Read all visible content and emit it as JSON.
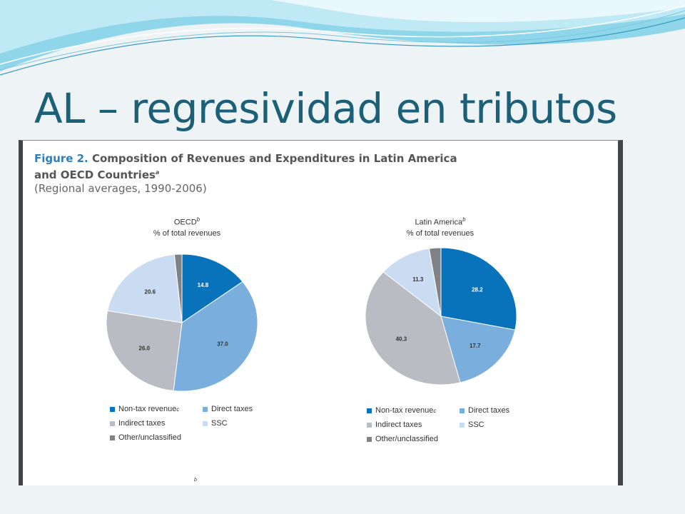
{
  "slide": {
    "title": "AL – regresividad en tributos"
  },
  "figure": {
    "label": "Figure 2.",
    "title_rest": " Composition of Revenues and Expenditures in Latin America",
    "title_line2": "and OECD Countries",
    "title_sup": "a",
    "subtitle": "(Regional averages, 1990-2006)",
    "footnote_mark": "b"
  },
  "colors": {
    "non_tax": "#0873bb",
    "direct": "#7aaedd",
    "indirect": "#b9bcc2",
    "ssc": "#c9dcf1",
    "other": "#808285"
  },
  "chart_data": [
    {
      "type": "pie",
      "title": "OECD",
      "title_sup": "b",
      "subtitle": "% of total revenues",
      "slices": [
        {
          "name": "Non-tax revenue",
          "value": 14.8,
          "label": "14.8",
          "color": "#0873bb"
        },
        {
          "name": "Direct taxes",
          "value": 37.0,
          "label": "37.0",
          "color": "#7aaedd"
        },
        {
          "name": "Indirect taxes",
          "value": 26.0,
          "label": "26.0",
          "color": "#b9bcc2"
        },
        {
          "name": "SSC",
          "value": 20.6,
          "label": "20.6",
          "color": "#c9dcf1"
        },
        {
          "name": "Other/unclassified",
          "value": 1.6,
          "label": "",
          "color": "#808285"
        }
      ],
      "legend": {
        "placement": "bottom",
        "entries": [
          {
            "label": "Non-tax revenue",
            "sup": "c",
            "color": "#0873bb"
          },
          {
            "label": "Direct taxes",
            "sup": "",
            "color": "#7aaedd"
          },
          {
            "label": "Indirect taxes",
            "sup": "",
            "color": "#b9bcc2"
          },
          {
            "label": "SSC",
            "sup": "",
            "color": "#c9dcf1"
          },
          {
            "label": "Other/unclassified",
            "sup": "",
            "color": "#808285"
          }
        ]
      }
    },
    {
      "type": "pie",
      "title": "Latin America",
      "title_sup": "b",
      "subtitle": "% of total revenues",
      "slices": [
        {
          "name": "Non-tax revenue",
          "value": 28.2,
          "label": "28.2",
          "color": "#0873bb"
        },
        {
          "name": "Direct taxes",
          "value": 17.7,
          "label": "17.7",
          "color": "#7aaedd"
        },
        {
          "name": "Indirect taxes",
          "value": 40.3,
          "label": "40.3",
          "color": "#b9bcc2"
        },
        {
          "name": "SSC",
          "value": 11.3,
          "label": "11.3",
          "color": "#c9dcf1"
        },
        {
          "name": "Other/unclassified",
          "value": 2.5,
          "label": "",
          "color": "#808285"
        }
      ],
      "legend": {
        "placement": "bottom",
        "entries": [
          {
            "label": "Non-tax revenue",
            "sup": "c",
            "color": "#0873bb"
          },
          {
            "label": "Direct taxes",
            "sup": "",
            "color": "#7aaedd"
          },
          {
            "label": "Indirect taxes",
            "sup": "",
            "color": "#b9bcc2"
          },
          {
            "label": "SSC",
            "sup": "",
            "color": "#c9dcf1"
          },
          {
            "label": "Other/unclassified",
            "sup": "",
            "color": "#808285"
          }
        ]
      }
    }
  ]
}
